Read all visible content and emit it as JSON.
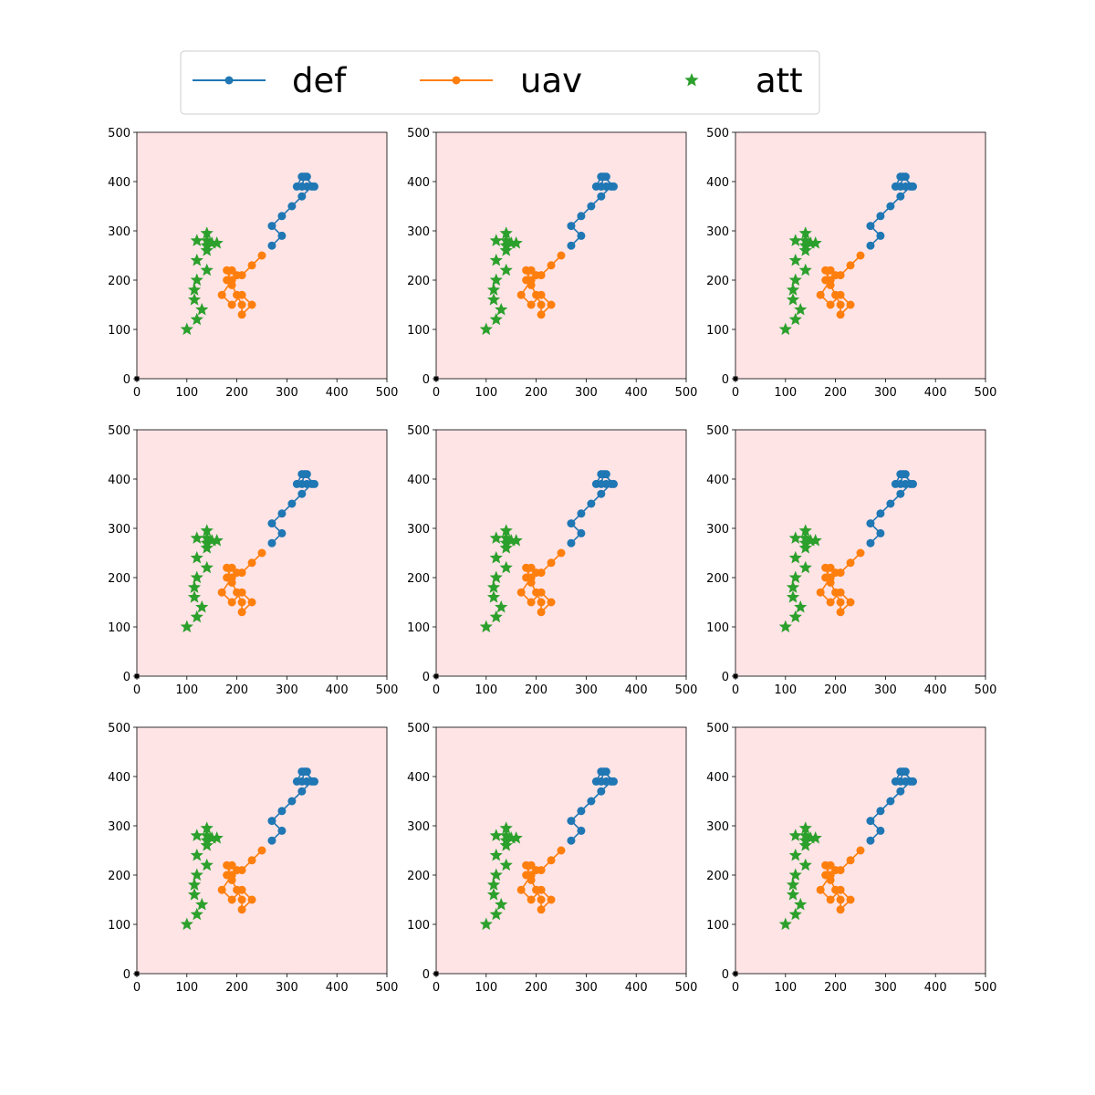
{
  "legend": {
    "placement": "top-center",
    "entries": [
      {
        "label": "def",
        "color": "#1f77b4",
        "marker": "circle-line"
      },
      {
        "label": "uav",
        "color": "#ff7f0e",
        "marker": "circle-line"
      },
      {
        "label": "att",
        "color": "#2ca02c",
        "marker": "star"
      }
    ]
  },
  "colors": {
    "plot_background": "#ffe4e6",
    "def": "#1f77b4",
    "uav": "#ff7f0e",
    "att": "#2ca02c",
    "origin": "#000000"
  },
  "chart_data": {
    "type": "scatter",
    "layout": "3x3 grid of identical subplots",
    "panel_count": 9,
    "xlim": [
      0,
      500
    ],
    "ylim": [
      0,
      500
    ],
    "xticks": [
      0,
      100,
      200,
      300,
      400,
      500
    ],
    "yticks": [
      0,
      100,
      200,
      300,
      400,
      500
    ],
    "grid": false,
    "origin_marker": [
      0,
      0
    ],
    "series": [
      {
        "name": "def",
        "style": "line-circle",
        "points": [
          [
            270,
            270
          ],
          [
            290,
            290
          ],
          [
            270,
            310
          ],
          [
            290,
            330
          ],
          [
            310,
            350
          ],
          [
            330,
            370
          ],
          [
            350,
            390
          ],
          [
            340,
            410
          ],
          [
            330,
            410
          ],
          [
            320,
            390
          ],
          [
            340,
            390
          ],
          [
            355,
            390
          ],
          [
            335,
            410
          ],
          [
            330,
            390
          ]
        ]
      },
      {
        "name": "uav",
        "style": "line-circle",
        "points": [
          [
            250,
            250
          ],
          [
            230,
            230
          ],
          [
            210,
            210
          ],
          [
            190,
            200
          ],
          [
            180,
            200
          ],
          [
            190,
            220
          ],
          [
            200,
            210
          ],
          [
            180,
            220
          ],
          [
            190,
            190
          ],
          [
            200,
            170
          ],
          [
            210,
            150
          ],
          [
            210,
            130
          ],
          [
            230,
            150
          ],
          [
            210,
            170
          ],
          [
            190,
            150
          ],
          [
            170,
            170
          ],
          [
            190,
            200
          ]
        ]
      },
      {
        "name": "att",
        "style": "star",
        "points": [
          [
            100,
            100
          ],
          [
            120,
            120
          ],
          [
            130,
            140
          ],
          [
            115,
            160
          ],
          [
            115,
            180
          ],
          [
            120,
            200
          ],
          [
            120,
            240
          ],
          [
            140,
            220
          ],
          [
            140,
            260
          ],
          [
            150,
            275
          ],
          [
            160,
            275
          ],
          [
            140,
            295
          ],
          [
            140,
            280
          ],
          [
            120,
            280
          ],
          [
            140,
            270
          ]
        ]
      }
    ]
  }
}
